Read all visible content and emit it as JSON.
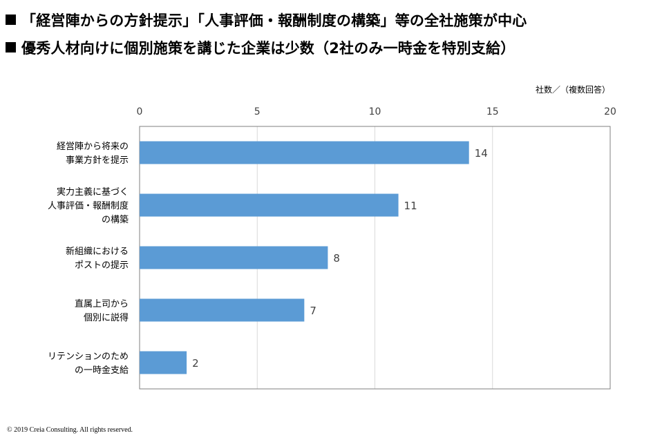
{
  "headlines": [
    "「経営陣からの方針提示」「人事評価・報酬制度の構築」等の全社施策が中心",
    "優秀人材向けに個別施策を講じた企業は少数（2社のみ一時金を特別支給）"
  ],
  "colors": {
    "bar": "#5b9bd5",
    "grid": "#d9d9d9",
    "frame": "#7f7f7f",
    "text": "#404040"
  },
  "chart_data": {
    "type": "bar",
    "orientation": "horizontal",
    "unit_label": "社数／（複数回答）",
    "xlim": [
      0,
      20
    ],
    "ticks": [
      "0",
      "5",
      "10",
      "15",
      "20"
    ],
    "tick_values": [
      0,
      5,
      10,
      15,
      20
    ],
    "grid": true,
    "categories": [
      [
        "経営陣から将来の",
        "事業方針を提示"
      ],
      [
        "実力主義に基づく",
        "人事評価・報酬制度",
        "の構築"
      ],
      [
        "新組織における",
        "ポストの提示"
      ],
      [
        "直属上司から",
        "個別に説得"
      ],
      [
        "リテンションのため",
        "の一時金支給"
      ]
    ],
    "values": [
      14,
      11,
      8,
      7,
      2
    ],
    "data_labels": [
      "14",
      "11",
      "8",
      "7",
      "2"
    ]
  },
  "footer": {
    "copyright": "© 2019 Creia Consulting. All rights reserved."
  }
}
